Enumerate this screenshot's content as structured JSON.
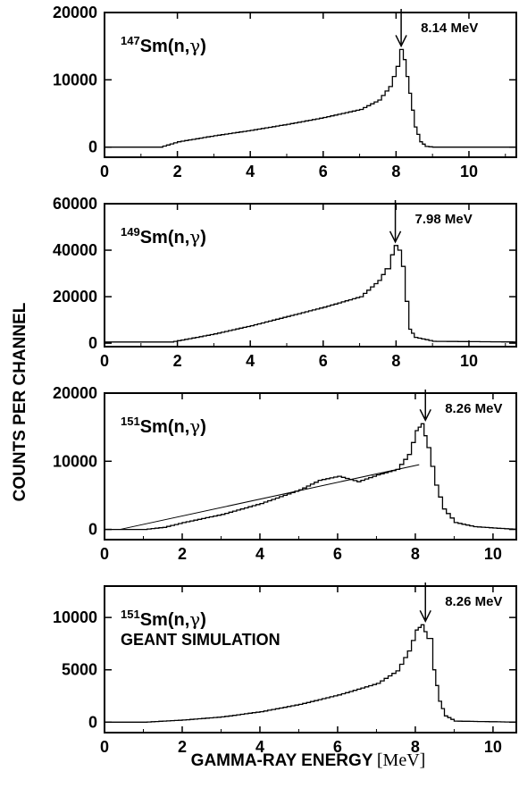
{
  "figure": {
    "ylabel": "COUNTS PER CHANNEL",
    "xlabel": "GAMMA-RAY ENERGY",
    "xunit": "[MeV]"
  },
  "chart_data": [
    {
      "type": "line",
      "step": true,
      "panel": 1,
      "label_mass": "147",
      "label_reaction": "Sm(n,",
      "label_gamma": "γ",
      "label_close": ")",
      "peak_label": "8.14 MeV",
      "peak_energy": 8.14,
      "xlim": [
        0,
        11.3
      ],
      "ylim": [
        -1500,
        20000
      ],
      "xticks": [
        0,
        2,
        4,
        6,
        8,
        10
      ],
      "yticks": [
        0,
        10000,
        20000
      ],
      "ytick_labels": [
        "0",
        "10000",
        "20000"
      ],
      "curve": [
        [
          0,
          0
        ],
        [
          1.5,
          0
        ],
        [
          2,
          800
        ],
        [
          3,
          1700
        ],
        [
          4,
          2500
        ],
        [
          5,
          3400
        ],
        [
          6,
          4400
        ],
        [
          7,
          5600
        ],
        [
          7.5,
          7000
        ],
        [
          7.8,
          9000
        ],
        [
          8.0,
          12000
        ],
        [
          8.1,
          14500
        ],
        [
          8.2,
          13000
        ],
        [
          8.35,
          8000
        ],
        [
          8.5,
          3000
        ],
        [
          8.65,
          800
        ],
        [
          8.8,
          100
        ],
        [
          9,
          0
        ],
        [
          11.3,
          0
        ]
      ]
    },
    {
      "type": "line",
      "step": true,
      "panel": 2,
      "label_mass": "149",
      "label_reaction": "Sm(n,",
      "label_gamma": "γ",
      "label_close": ")",
      "peak_label": "7.98 MeV",
      "peak_energy": 7.98,
      "xlim": [
        0,
        11.3
      ],
      "ylim": [
        -1500,
        60000
      ],
      "xticks": [
        0,
        2,
        4,
        6,
        8,
        10
      ],
      "yticks": [
        0,
        20000,
        40000,
        60000
      ],
      "ytick_labels": [
        "0",
        "20000",
        "40000",
        "60000"
      ],
      "curve": [
        [
          0,
          500
        ],
        [
          1.8,
          500
        ],
        [
          2.5,
          2500
        ],
        [
          3,
          4000
        ],
        [
          4,
          7500
        ],
        [
          5,
          11500
        ],
        [
          6,
          15500
        ],
        [
          7,
          20000
        ],
        [
          7.5,
          27000
        ],
        [
          7.7,
          32000
        ],
        [
          7.85,
          38000
        ],
        [
          7.95,
          42000
        ],
        [
          8.05,
          40000
        ],
        [
          8.15,
          33000
        ],
        [
          8.25,
          18000
        ],
        [
          8.35,
          6000
        ],
        [
          8.5,
          2500
        ],
        [
          9,
          800
        ],
        [
          11.3,
          500
        ]
      ]
    },
    {
      "type": "line",
      "step": true,
      "panel": 3,
      "label_mass": "151",
      "label_reaction": "Sm(n,",
      "label_gamma": "γ",
      "label_close": ")",
      "peak_label": "8.26 MeV",
      "peak_energy": 8.26,
      "xlim": [
        0,
        10.6
      ],
      "ylim": [
        -1500,
        20000
      ],
      "xticks": [
        0,
        2,
        4,
        6,
        8,
        10
      ],
      "yticks": [
        0,
        10000,
        20000
      ],
      "ytick_labels": [
        "0",
        "10000",
        "20000"
      ],
      "curve": [
        [
          0,
          0
        ],
        [
          1,
          0
        ],
        [
          1.5,
          300
        ],
        [
          2,
          1000
        ],
        [
          3,
          2200
        ],
        [
          4,
          3800
        ],
        [
          5,
          5800
        ],
        [
          5.5,
          7200
        ],
        [
          6,
          7800
        ],
        [
          6.5,
          7000
        ],
        [
          7,
          8000
        ],
        [
          7.5,
          8800
        ],
        [
          7.8,
          11000
        ],
        [
          8,
          14500
        ],
        [
          8.15,
          15500
        ],
        [
          8.3,
          12000
        ],
        [
          8.5,
          6500
        ],
        [
          8.7,
          3000
        ],
        [
          9,
          1000
        ],
        [
          9.5,
          400
        ],
        [
          10,
          200
        ],
        [
          10.6,
          0
        ]
      ],
      "fit_line": [
        [
          0.4,
          0
        ],
        [
          8.1,
          9500
        ]
      ]
    },
    {
      "type": "line",
      "step": true,
      "panel": 4,
      "label_mass": "151",
      "label_reaction": "Sm(n,",
      "label_gamma": "γ",
      "label_close": ")",
      "label_line2": "GEANT SIMULATION",
      "peak_label": "8.26 MeV",
      "peak_energy": 8.26,
      "xlim": [
        0,
        10.6
      ],
      "ylim": [
        -1000,
        13000
      ],
      "xticks": [
        0,
        2,
        4,
        6,
        8,
        10
      ],
      "yticks": [
        0,
        5000,
        10000
      ],
      "ytick_labels": [
        "0",
        "5000",
        "10000"
      ],
      "curve": [
        [
          0,
          0
        ],
        [
          1,
          0
        ],
        [
          2,
          200
        ],
        [
          3,
          500
        ],
        [
          4,
          1000
        ],
        [
          5,
          1700
        ],
        [
          6,
          2600
        ],
        [
          7,
          3700
        ],
        [
          7.5,
          4900
        ],
        [
          7.8,
          6800
        ],
        [
          8,
          8800
        ],
        [
          8.15,
          9300
        ],
        [
          8.3,
          8000
        ],
        [
          8.45,
          5000
        ],
        [
          8.6,
          2000
        ],
        [
          8.75,
          600
        ],
        [
          9,
          100
        ],
        [
          10.6,
          0
        ]
      ]
    }
  ]
}
